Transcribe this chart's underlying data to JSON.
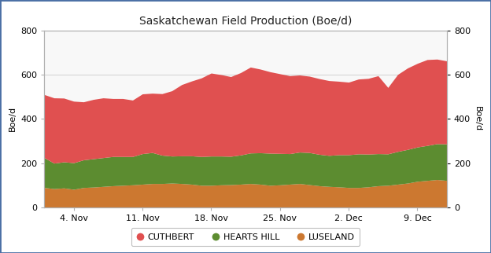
{
  "title": "Saskatchewan Field Production (Boe/d)",
  "ylabel": "Boe/d",
  "ylabel_right": "Boe/d",
  "ylim": [
    0,
    800
  ],
  "yticks": [
    0,
    200,
    400,
    600,
    800
  ],
  "xtick_labels": [
    "4. Nov",
    "11. Nov",
    "18. Nov",
    "25. Nov",
    "2. Dec",
    "9. Dec"
  ],
  "xtick_positions": [
    3,
    10,
    17,
    24,
    31,
    38
  ],
  "n_points": 42,
  "luseland": [
    90,
    85,
    88,
    82,
    90,
    92,
    95,
    98,
    100,
    102,
    105,
    108,
    108,
    110,
    108,
    105,
    100,
    100,
    102,
    103,
    105,
    108,
    105,
    100,
    102,
    105,
    108,
    103,
    98,
    95,
    93,
    90,
    90,
    93,
    98,
    100,
    105,
    110,
    118,
    122,
    126,
    122
  ],
  "hearts_hill": [
    135,
    115,
    118,
    120,
    125,
    128,
    130,
    132,
    130,
    128,
    138,
    140,
    128,
    122,
    125,
    128,
    130,
    132,
    130,
    128,
    132,
    138,
    142,
    145,
    142,
    138,
    142,
    145,
    142,
    140,
    145,
    148,
    152,
    148,
    145,
    142,
    148,
    152,
    155,
    158,
    162,
    165
  ],
  "cuthbert": [
    285,
    295,
    288,
    278,
    262,
    268,
    270,
    262,
    262,
    255,
    270,
    268,
    278,
    295,
    322,
    338,
    355,
    375,
    368,
    360,
    372,
    388,
    378,
    368,
    360,
    352,
    348,
    345,
    342,
    338,
    332,
    328,
    338,
    342,
    352,
    300,
    348,
    368,
    378,
    388,
    382,
    375
  ],
  "color_cuthbert": "#e05050",
  "color_hearts_hill": "#5c8c30",
  "color_luseland": "#cc7830",
  "background_color": "#ffffff",
  "plot_bg_color": "#f8f8f8",
  "grid_color": "#d8d8d8",
  "border_color": "#b0b0b0",
  "outer_border_color": "#4a6fa5",
  "legend_labels": [
    "CUTHBERT",
    "HEARTS HILL",
    "LUSELAND"
  ],
  "title_fontsize": 10,
  "tick_fontsize": 8,
  "ylabel_fontsize": 8
}
